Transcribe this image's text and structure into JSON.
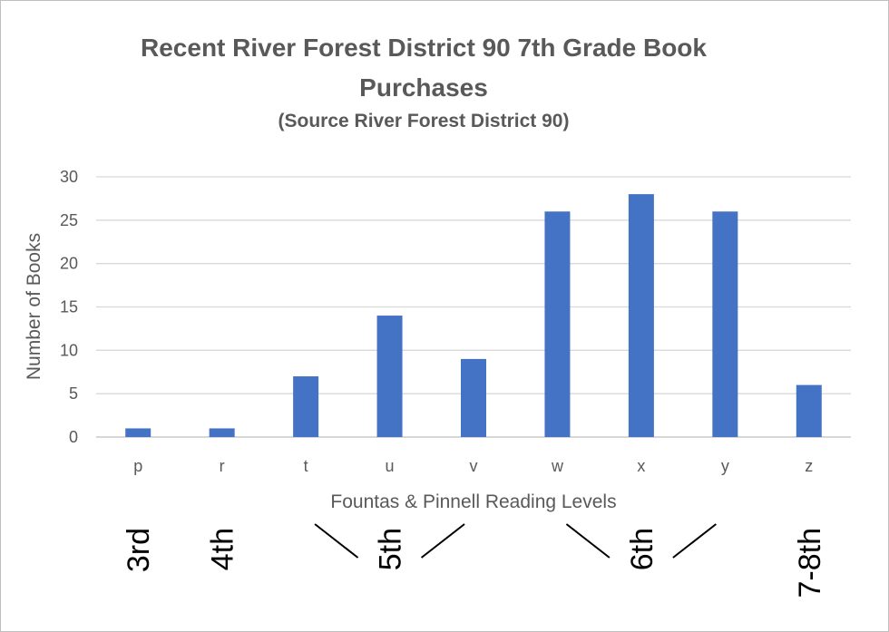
{
  "chart_data": {
    "type": "bar",
    "title_line1": "Recent River Forest District 90 7th Grade Book",
    "title_line2": "Purchases",
    "subtitle": "(Source River Forest District 90)",
    "xlabel": "Fountas & Pinnell Reading Levels",
    "ylabel": "Number of Books",
    "categories": [
      "p",
      "r",
      "t",
      "u",
      "v",
      "w",
      "x",
      "y",
      "z"
    ],
    "values": [
      1,
      1,
      7,
      14,
      9,
      26,
      28,
      26,
      6
    ],
    "ylim": [
      0,
      30
    ],
    "yticks": [
      0,
      5,
      10,
      15,
      20,
      25,
      30
    ],
    "grid": true,
    "bar_color": "#4472C4",
    "grade_annotations": [
      {
        "label": "3rd",
        "category": "p"
      },
      {
        "label": "4th",
        "category": "r"
      },
      {
        "label": "5th",
        "from": "t",
        "to": "v"
      },
      {
        "label": "6th",
        "from": "w",
        "to": "y"
      },
      {
        "label": "7-8th",
        "category": "z"
      }
    ]
  }
}
